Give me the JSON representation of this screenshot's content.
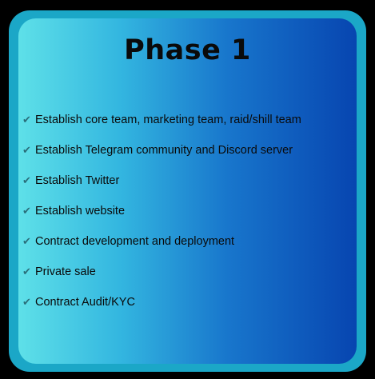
{
  "card": {
    "title": "Phase 1",
    "items": [
      {
        "icon": "check-icon",
        "text": "Establish core team, marketing team, raid/shill team"
      },
      {
        "icon": "check-icon",
        "text": "Establish Telegram community and Discord server"
      },
      {
        "icon": "check-icon",
        "text": "Establish Twitter"
      },
      {
        "icon": "check-icon",
        "text": "Establish website"
      },
      {
        "icon": "check-icon",
        "text": "Contract development and deployment"
      },
      {
        "icon": "check-icon",
        "text": "Private sale"
      },
      {
        "icon": "check-icon",
        "text": "Contract Audit/KYC"
      }
    ]
  },
  "colors": {
    "background": "#000000",
    "frame": "#1ba7c7",
    "gradient_start": "#5ee0e8",
    "gradient_end": "#0745b0",
    "text": "#0a0a0a",
    "check": "#2a6e7a"
  }
}
